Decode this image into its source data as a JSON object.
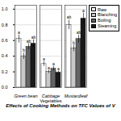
{
  "chart_data": {
    "type": "bar",
    "title": "Effects of Cooking Methods on TFC Values of V",
    "xlabel": "Vegetables",
    "categories": [
      "Green bean",
      "Cabbage",
      "Mustardleaf"
    ],
    "series": [
      {
        "name": "Raw",
        "color": "#ffffff",
        "values": [
          0.62,
          0.3,
          0.8
        ],
        "errors": [
          0.05,
          0.03,
          0.06
        ],
        "annotations": [
          "a",
          "a",
          "ab"
        ]
      },
      {
        "name": "Blanching",
        "color": "#c8c8c8",
        "values": [
          0.4,
          0.2,
          0.5
        ],
        "errors": [
          0.04,
          0.02,
          0.04
        ],
        "annotations": [
          "b",
          "a",
          "b"
        ]
      },
      {
        "name": "Boiling",
        "color": "#646464",
        "values": [
          0.52,
          0.24,
          0.62
        ],
        "errors": [
          0.04,
          0.03,
          0.05
        ],
        "annotations": [
          "ab",
          "a",
          "ab"
        ]
      },
      {
        "name": "Steaming",
        "color": "#1a1a1a",
        "values": [
          0.56,
          0.19,
          0.88
        ],
        "errors": [
          0.05,
          0.02,
          0.07
        ],
        "annotations": [
          "ab",
          "a",
          "a"
        ]
      }
    ],
    "ylim": [
      0,
      1.05
    ],
    "yticks": [
      {
        "value": 0,
        "label": "0.0"
      },
      0.2,
      0.4,
      0.6,
      0.8,
      {
        "value": 1,
        "label": "1.0"
      }
    ],
    "grid": true,
    "legend": "right"
  }
}
